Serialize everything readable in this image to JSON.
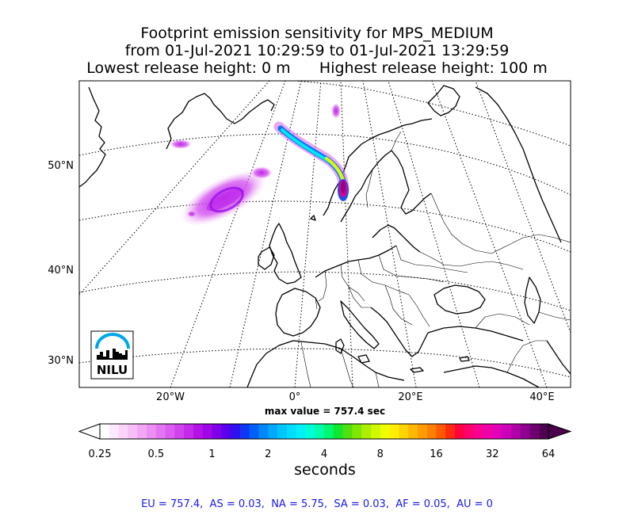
{
  "title": {
    "line1": "Footprint emission sensitivity for MPS_MEDIUM",
    "line2": "from 01-Jul-2021 10:29:59 to 01-Jul-2021 13:29:59",
    "line3_left": "Lowest release height: 0 m",
    "line3_right": "Highest release height: 100 m"
  },
  "map": {
    "lat_labels": [
      "50°N",
      "40°N",
      "30°N"
    ],
    "lon_labels": [
      "20°W",
      "0°",
      "20°E",
      "40°E"
    ],
    "graticule": "dotted",
    "logo_text": "NILU"
  },
  "max_value_text": "max value = 757.4 sec",
  "colorbar": {
    "tick_labels": [
      "0.25",
      "0.5",
      "1",
      "2",
      "4",
      "8",
      "16",
      "32",
      "64"
    ],
    "label": "seconds",
    "colors": [
      "#ffffff",
      "#fde9fd",
      "#fbd3fb",
      "#f7bdf7",
      "#f2a6f5",
      "#ec8ef2",
      "#e475f0",
      "#db5cee",
      "#d043ec",
      "#c52aea",
      "#b512e8",
      "#9f07e8",
      "#8000e8",
      "#5a00ec",
      "#3010f0",
      "#1038f4",
      "#0060f8",
      "#0088fb",
      "#00a8fd",
      "#00c4fe",
      "#00dcff",
      "#00f0f4",
      "#00ffd8",
      "#00ffaa",
      "#00f870",
      "#10e830",
      "#50e010",
      "#80e800",
      "#aaf000",
      "#d0f800",
      "#f0ff00",
      "#ffee00",
      "#ffd400",
      "#ffb800",
      "#ff9c00",
      "#ff8000",
      "#ff5a00",
      "#ff2a10",
      "#ff0040",
      "#ff0070",
      "#fa0090",
      "#f000a8",
      "#e200b8",
      "#cc00b8",
      "#b000a8",
      "#900090",
      "#700070",
      "#500050"
    ]
  },
  "footer": "EU = 757.4,  AS = 0.03,  NA = 5.75,  SA = 0.03,  AF = 0.05,  AU = 0"
}
